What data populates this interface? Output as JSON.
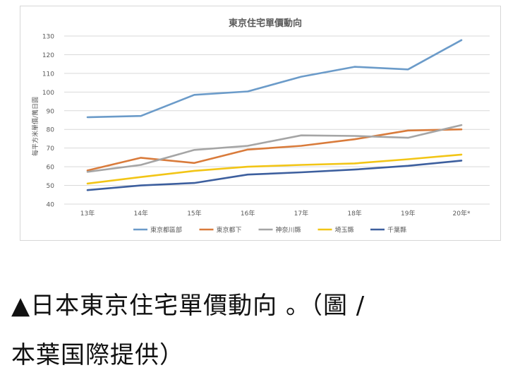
{
  "chart_data": {
    "type": "line",
    "title": "東京住宅單價動向",
    "ylabel": "每平方米單價/萬日圓",
    "xlabel": "",
    "categories": [
      "13年",
      "14年",
      "15年",
      "16年",
      "17年",
      "18年",
      "19年",
      "20年*"
    ],
    "ylim": [
      40,
      130
    ],
    "yticks": [
      40,
      50,
      60,
      70,
      80,
      90,
      100,
      110,
      120,
      130
    ],
    "grid": true,
    "legend_position": "bottom",
    "series": [
      {
        "name": "東京都區部",
        "color": "#6b9bc9",
        "values": [
          86.5,
          87.2,
          98.5,
          100.3,
          108.2,
          113.5,
          112.1,
          127.8
        ]
      },
      {
        "name": "東京都下",
        "color": "#d97b3b",
        "values": [
          58.0,
          64.8,
          62.0,
          69.2,
          71.2,
          74.7,
          79.4,
          80.0
        ]
      },
      {
        "name": "神奈川縣",
        "color": "#a5a5a5",
        "values": [
          57.3,
          61.0,
          69.0,
          71.2,
          76.8,
          76.5,
          75.5,
          82.3
        ]
      },
      {
        "name": "埼玉縣",
        "color": "#f2c516",
        "values": [
          51.0,
          54.5,
          57.8,
          60.0,
          61.0,
          61.8,
          64.0,
          66.5
        ]
      },
      {
        "name": "千葉縣",
        "color": "#3d5f9e",
        "values": [
          47.5,
          50.0,
          51.3,
          55.8,
          57.0,
          58.5,
          60.5,
          63.3
        ]
      }
    ]
  },
  "caption": {
    "line1": "▲日本東京住宅單價動向 。（圖 /",
    "line2": "本葉国際提供）"
  }
}
